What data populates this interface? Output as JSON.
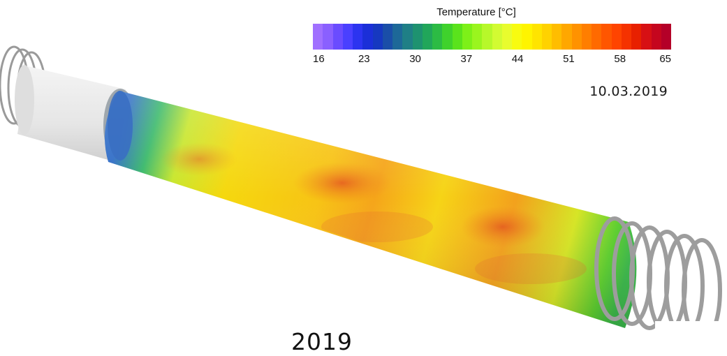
{
  "legend": {
    "title": "Temperature [°C]",
    "ticks": [
      "16",
      "23",
      "30",
      "37",
      "44",
      "51",
      "58",
      "65"
    ],
    "colors": [
      "#a070ff",
      "#8a60ff",
      "#6a4cff",
      "#4a40ff",
      "#2c34f0",
      "#1b2fd8",
      "#1638c0",
      "#1a4ea8",
      "#1d6898",
      "#1f7f86",
      "#1e9270",
      "#21a65a",
      "#2cbb44",
      "#3fd22c",
      "#5ae31c",
      "#7df018",
      "#9af51e",
      "#b7f82a",
      "#d2fb32",
      "#e8fc2e",
      "#f8fb10",
      "#fff400",
      "#ffe400",
      "#ffd200",
      "#ffbd00",
      "#ffa700",
      "#ff9200",
      "#ff7e00",
      "#ff6a00",
      "#ff5600",
      "#ff4400",
      "#f53200",
      "#e82000",
      "#d71014",
      "#c5061e",
      "#b40028"
    ]
  },
  "date": "10.03.2019",
  "footer_text": "2019",
  "scene": {
    "description_icon": "tube-heat-exchanger-icon",
    "colors": {
      "cold": "#2f5fc0",
      "mid": "#f2e20a",
      "hot": "#f08a1a",
      "warm_spots": "#e8631e",
      "insulation": "#e8e8e8",
      "coil": "#a8a8a8"
    }
  }
}
